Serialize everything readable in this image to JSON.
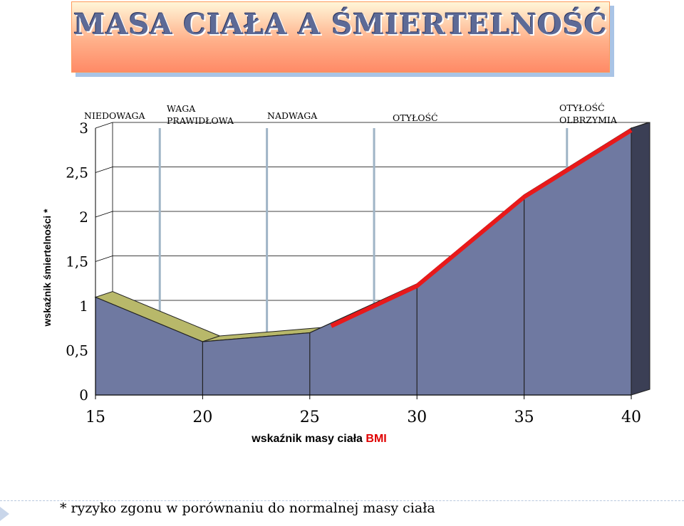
{
  "title": "MASA CIAŁA A ŚMIERTELNOŚĆ",
  "footnote": "* ryzyko zgonu w porównaniu do normalnej masy ciała",
  "zones": [
    {
      "label": "NIEDOWAGA"
    },
    {
      "label": "WAGA\nPRAWIDŁOWA"
    },
    {
      "label": "NADWAGA"
    },
    {
      "label": "OTYŁOŚĆ"
    },
    {
      "label": "OTYŁOŚĆ\nOLBRZYMIA"
    }
  ],
  "chart_data": {
    "type": "area",
    "xlabel_main": "wskaźnik masy ciała ",
    "xlabel_accent": "BMI",
    "ylabel": "wskaźnik śmiertelności *",
    "x": [
      15,
      20,
      25,
      30,
      35,
      40
    ],
    "y": [
      1.1,
      0.6,
      0.7,
      1.25,
      2.25,
      3.0
    ],
    "xlim": [
      15,
      40
    ],
    "ylim": [
      0,
      3
    ],
    "xticks": [
      "15",
      "20",
      "25",
      "30",
      "35",
      "40"
    ],
    "yticks": [
      "0",
      "0,5",
      "1",
      "1,5",
      "2",
      "2,5",
      "3"
    ],
    "zone_boundaries": [
      18,
      23,
      28,
      37
    ],
    "highlight_segment": {
      "x": [
        26,
        30,
        35,
        40
      ],
      "y": [
        0.8,
        1.25,
        2.25,
        3.0
      ]
    },
    "colors": {
      "area": "#6f79a1",
      "area_edge": "#222222",
      "top_face": "#b8b86a",
      "side_face": "#3b3f55",
      "zone_line": "#9fb4c6",
      "highlight": "#e8191a"
    }
  }
}
